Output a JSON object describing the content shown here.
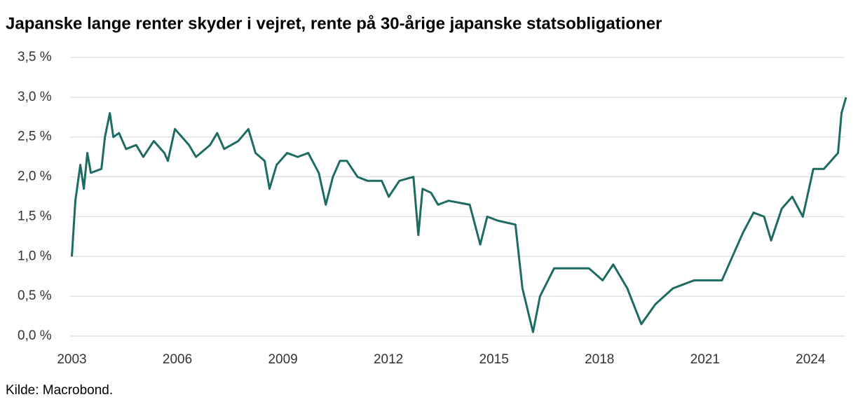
{
  "chart_data": {
    "type": "line",
    "title": "Japanske lange renter skyder i vejret, rente på 30-årige japanske statsobligationer",
    "source": "Kilde: Macrobond.",
    "x": [
      2003.0,
      2003.1,
      2003.24,
      2003.34,
      2003.44,
      2003.54,
      2003.84,
      2003.94,
      2004.08,
      2004.18,
      2004.34,
      2004.54,
      2004.83,
      2005.03,
      2005.33,
      2005.63,
      2005.73,
      2005.93,
      2006.13,
      2006.33,
      2006.53,
      2006.93,
      2007.13,
      2007.33,
      2007.73,
      2008.02,
      2008.22,
      2008.48,
      2008.62,
      2008.82,
      2009.12,
      2009.42,
      2009.72,
      2010.02,
      2010.22,
      2010.42,
      2010.62,
      2010.82,
      2011.12,
      2011.41,
      2011.81,
      2012.01,
      2012.31,
      2012.71,
      2012.85,
      2012.97,
      2013.21,
      2013.41,
      2013.71,
      2014.31,
      2014.61,
      2014.81,
      2015.11,
      2015.61,
      2015.81,
      2016.11,
      2016.31,
      2016.71,
      2017.7,
      2018.09,
      2018.39,
      2018.79,
      2019.19,
      2019.59,
      2020.09,
      2020.69,
      2021.48,
      2021.78,
      2022.08,
      2022.38,
      2022.68,
      2022.88,
      2023.18,
      2023.48,
      2023.78,
      2024.08,
      2024.38,
      2024.78,
      2024.88,
      2025.01
    ],
    "series": [
      {
        "name": "Rente",
        "color": "#1d6b62",
        "values": [
          1.0,
          1.7,
          2.15,
          1.85,
          2.3,
          2.05,
          2.1,
          2.5,
          2.8,
          2.5,
          2.55,
          2.35,
          2.4,
          2.25,
          2.45,
          2.3,
          2.2,
          2.6,
          2.5,
          2.4,
          2.25,
          2.4,
          2.55,
          2.35,
          2.45,
          2.6,
          2.3,
          2.2,
          1.85,
          2.15,
          2.3,
          2.25,
          2.3,
          2.05,
          1.65,
          2.0,
          2.2,
          2.2,
          2.0,
          1.95,
          1.95,
          1.75,
          1.95,
          2.0,
          1.27,
          1.85,
          1.8,
          1.65,
          1.7,
          1.65,
          1.15,
          1.5,
          1.45,
          1.4,
          0.6,
          0.05,
          0.5,
          0.85,
          0.85,
          0.7,
          0.9,
          0.6,
          0.15,
          0.4,
          0.6,
          0.7,
          0.7,
          1.0,
          1.3,
          1.55,
          1.5,
          1.2,
          1.6,
          1.75,
          1.5,
          2.1,
          2.1,
          2.3,
          2.8,
          3.0
        ]
      }
    ],
    "xlim": [
      2002.95,
      2025.05
    ],
    "ylim": [
      0,
      3.5
    ],
    "xticks": [
      2003,
      2006,
      2009,
      2012,
      2015,
      2018,
      2021,
      2024
    ],
    "yticks": [
      {
        "value": 0,
        "label": "0,0 %"
      },
      {
        "value": 0.5,
        "label": "0,5 %"
      },
      {
        "value": 1,
        "label": "1,0 %"
      },
      {
        "value": 1.5,
        "label": "1,5 %"
      },
      {
        "value": 2,
        "label": "2,0 %"
      },
      {
        "value": 2.5,
        "label": "2,5 %"
      },
      {
        "value": 3,
        "label": "3,0 %"
      },
      {
        "value": 3.5,
        "label": "3,5 %"
      }
    ],
    "grid": true
  }
}
